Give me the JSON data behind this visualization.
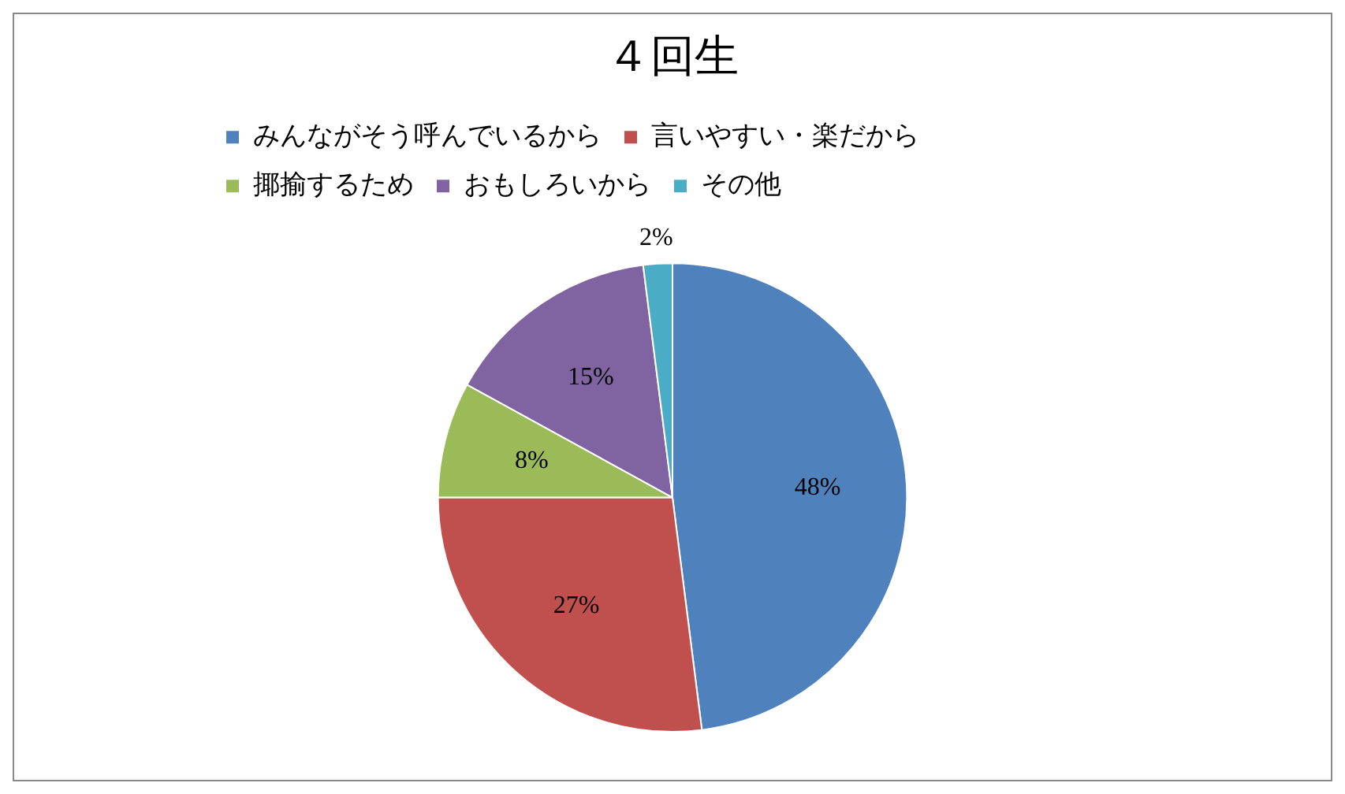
{
  "chart_data": {
    "type": "pie",
    "title": "４回生",
    "categories": [
      "みんながそう呼んでいるから",
      "言いやすい・楽だから",
      "揶揄するため",
      "おもしろいから",
      "その他"
    ],
    "values": [
      48,
      27,
      8,
      15,
      2
    ],
    "colors": [
      "#4f81bd",
      "#c0504d",
      "#9bbb59",
      "#8064a2",
      "#4bacc6"
    ],
    "value_labels": [
      "48%",
      "27%",
      "8%",
      "15%",
      "2%"
    ],
    "legend": "top"
  }
}
